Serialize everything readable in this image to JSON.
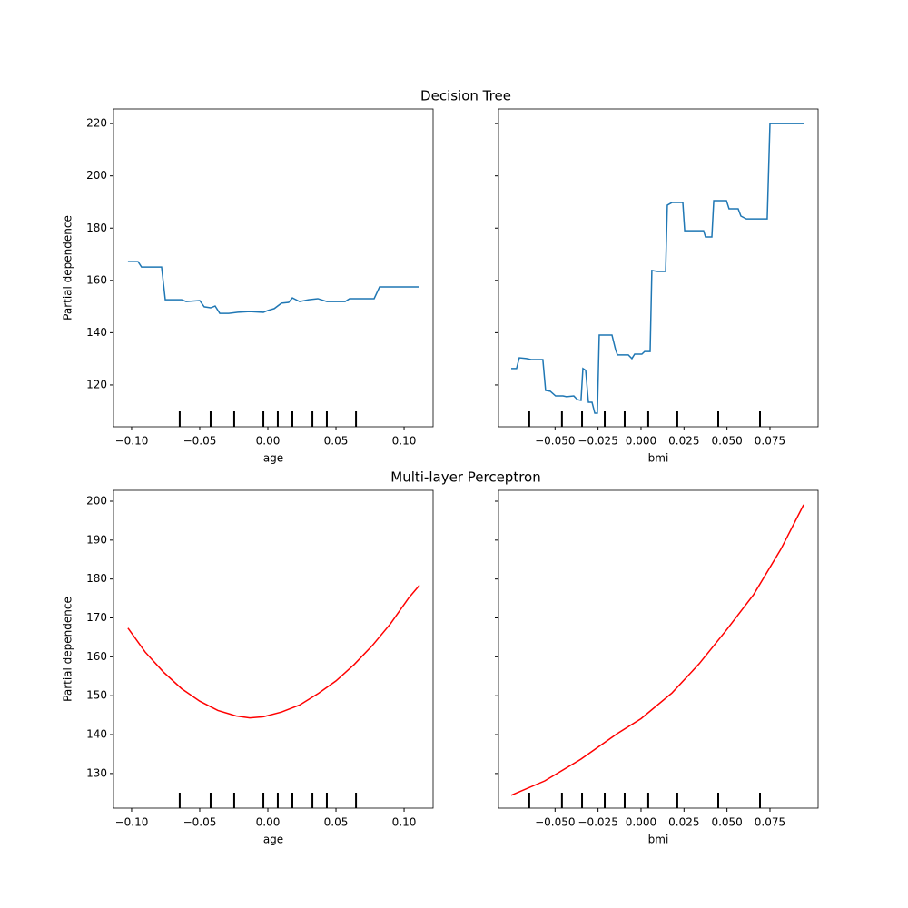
{
  "chart_data": [
    {
      "type": "line",
      "title": "Decision Tree",
      "xlabel": "age",
      "ylabel": "Partial dependence",
      "color": "#1f77b4",
      "x": [
        -0.1027,
        -0.0953,
        -0.0927,
        -0.078,
        -0.0753,
        -0.0633,
        -0.06,
        -0.05,
        -0.0467,
        -0.042,
        -0.0387,
        -0.0353,
        -0.0287,
        -0.022,
        -0.0133,
        -0.0033,
        0,
        0.0047,
        0.01,
        0.0153,
        0.018,
        0.0233,
        0.03,
        0.0367,
        0.0433,
        0.0567,
        0.06,
        0.078,
        0.082,
        0.1113
      ],
      "values": [
        167.2,
        167.2,
        165.1,
        165.1,
        152.6,
        152.6,
        151.9,
        152.3,
        149.9,
        149.5,
        150.2,
        147.4,
        147.4,
        147.8,
        148.1,
        147.8,
        148.5,
        149.2,
        151.3,
        151.6,
        153.3,
        151.9,
        152.6,
        153.0,
        151.9,
        151.9,
        153.0,
        153.0,
        157.5,
        157.5
      ],
      "deciles": [
        -0.0647,
        -0.042,
        -0.0247,
        -0.0033,
        0.0073,
        0.018,
        0.0327,
        0.0433,
        0.0647
      ],
      "xlim": [
        -0.1133,
        0.1213
      ],
      "ylim": [
        104.0,
        225.6
      ],
      "xticks": [
        {
          "value": -0.1,
          "label": "−0.10"
        },
        {
          "value": -0.05,
          "label": "−0.05"
        },
        {
          "value": 0,
          "label": "0.00"
        },
        {
          "value": 0.05,
          "label": "0.05"
        },
        {
          "value": 0.1,
          "label": "0.10"
        }
      ],
      "yticks": [
        120,
        140,
        160,
        180,
        200,
        220
      ]
    },
    {
      "type": "line",
      "xlabel": "bmi",
      "color": "#1f77b4",
      "x": [
        -0.0755,
        -0.0724,
        -0.0708,
        -0.0666,
        -0.0639,
        -0.0571,
        -0.0555,
        -0.0528,
        -0.0497,
        -0.0454,
        -0.0433,
        -0.0391,
        -0.037,
        -0.0349,
        -0.0338,
        -0.0322,
        -0.0306,
        -0.0285,
        -0.0269,
        -0.0254,
        -0.0243,
        -0.0169,
        -0.0148,
        -0.0137,
        -0.0074,
        -0.0053,
        -0.0037,
        0.0005,
        0.0021,
        0.0053,
        0.0063,
        0.0095,
        0.0143,
        0.0153,
        0.018,
        0.0243,
        0.0254,
        0.0364,
        0.0375,
        0.0412,
        0.0423,
        0.0497,
        0.0512,
        0.0565,
        0.0581,
        0.0613,
        0.0734,
        0.075,
        0.0946
      ],
      "values": [
        126.3,
        126.3,
        130.4,
        130.1,
        129.7,
        129.7,
        117.9,
        117.6,
        115.8,
        115.8,
        115.5,
        115.8,
        114.4,
        114.1,
        126.3,
        125.6,
        113.4,
        113.4,
        109.2,
        109.2,
        139.1,
        139.1,
        133.5,
        131.5,
        131.5,
        130.1,
        131.8,
        131.8,
        132.8,
        132.8,
        163.8,
        163.4,
        163.4,
        188.8,
        189.8,
        189.8,
        179.0,
        179.0,
        176.6,
        176.6,
        190.5,
        190.5,
        187.4,
        187.4,
        184.6,
        183.5,
        183.5,
        220.0,
        220.0
      ],
      "deciles": [
        -0.065,
        -0.046,
        -0.0343,
        -0.0211,
        -0.0095,
        0.0042,
        0.0211,
        0.0449,
        0.0692
      ],
      "xlim": [
        -0.0829,
        0.103
      ],
      "ylim": [
        104.0,
        225.6
      ],
      "xticks": [
        {
          "value": -0.05,
          "label": "−0.050"
        },
        {
          "value": -0.025,
          "label": "−0.025"
        },
        {
          "value": 0,
          "label": "0.000"
        },
        {
          "value": 0.025,
          "label": "0.025"
        },
        {
          "value": 0.05,
          "label": "0.050"
        },
        {
          "value": 0.075,
          "label": "0.075"
        }
      ]
    },
    {
      "type": "line",
      "title": "Multi-layer Perceptron",
      "xlabel": "age",
      "ylabel": "Partial dependence",
      "color": "#ff0000",
      "x": [
        -0.1027,
        -0.09,
        -0.0767,
        -0.0633,
        -0.05,
        -0.0367,
        -0.0233,
        -0.0133,
        -0.0033,
        0.01,
        0.0233,
        0.0367,
        0.05,
        0.0633,
        0.0767,
        0.09,
        0.1033,
        0.1113
      ],
      "values": [
        167.4,
        161.2,
        156.1,
        151.8,
        148.6,
        146.2,
        144.8,
        144.3,
        144.6,
        145.8,
        147.6,
        150.5,
        153.8,
        158.0,
        162.9,
        168.5,
        175.1,
        178.4
      ],
      "deciles": [
        -0.0647,
        -0.042,
        -0.0247,
        -0.0033,
        0.0073,
        0.018,
        0.0327,
        0.0433,
        0.0647
      ],
      "xlim": [
        -0.1133,
        0.1213
      ],
      "ylim": [
        121.1,
        202.8
      ],
      "xticks": [
        {
          "value": -0.1,
          "label": "−0.10"
        },
        {
          "value": -0.05,
          "label": "−0.05"
        },
        {
          "value": 0,
          "label": "0.00"
        },
        {
          "value": 0.05,
          "label": "0.05"
        },
        {
          "value": 0.1,
          "label": "0.10"
        }
      ],
      "yticks": [
        130,
        140,
        150,
        160,
        170,
        180,
        190,
        200
      ]
    },
    {
      "type": "line",
      "xlabel": "bmi",
      "color": "#ff0000",
      "x": [
        -0.0755,
        -0.056,
        -0.0349,
        -0.0137,
        0,
        0.018,
        0.0338,
        0.0497,
        0.0655,
        0.0814,
        0.0946
      ],
      "values": [
        124.4,
        128.1,
        133.7,
        140.3,
        144.1,
        150.7,
        158.2,
        166.9,
        176.0,
        187.7,
        199.1
      ],
      "deciles": [
        -0.065,
        -0.046,
        -0.0343,
        -0.0211,
        -0.0095,
        0.0042,
        0.0211,
        0.0449,
        0.0692
      ],
      "xlim": [
        -0.0829,
        0.103
      ],
      "ylim": [
        121.1,
        202.8
      ],
      "xticks": [
        {
          "value": -0.05,
          "label": "−0.050"
        },
        {
          "value": -0.025,
          "label": "−0.025"
        },
        {
          "value": 0,
          "label": "0.000"
        },
        {
          "value": 0.025,
          "label": "0.025"
        },
        {
          "value": 0.05,
          "label": "0.050"
        },
        {
          "value": 0.075,
          "label": "0.075"
        }
      ]
    }
  ]
}
